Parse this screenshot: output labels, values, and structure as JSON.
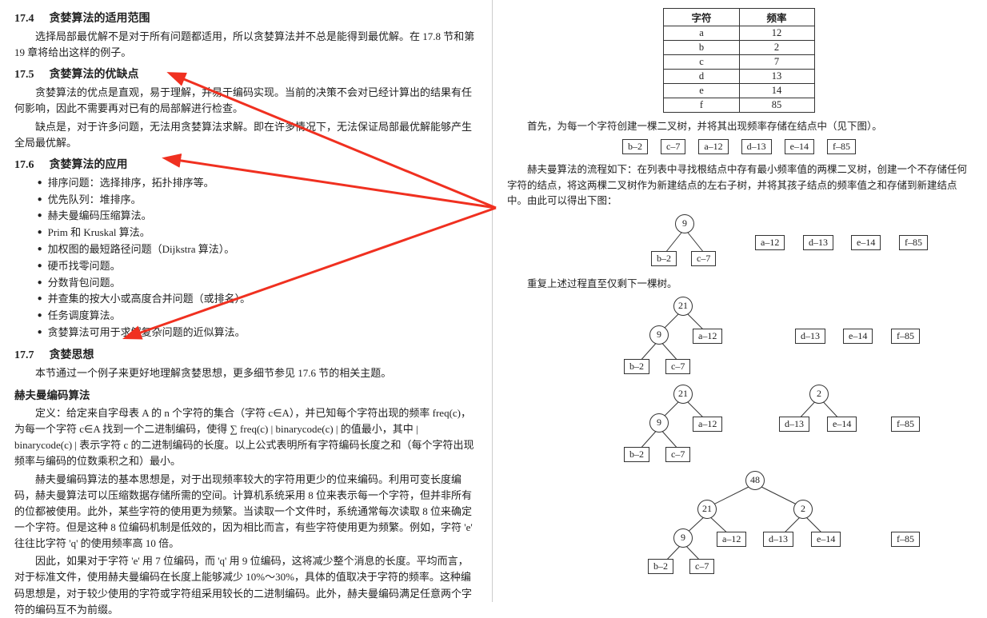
{
  "left": {
    "s174": {
      "num": "17.4",
      "title": "贪婪算法的适用范围",
      "p1": "选择局部最优解不是对于所有问题都适用，所以贪婪算法并不总是能得到最优解。在 17.8 节和第 19 章将给出这样的例子。"
    },
    "s175": {
      "num": "17.5",
      "title": "贪婪算法的优缺点",
      "p1": "贪婪算法的优点是直观，易于理解，并易于编码实现。当前的决策不会对已经计算出的结果有任何影响，因此不需要再对已有的局部解进行检查。",
      "p2": "缺点是，对于许多问题，无法用贪婪算法求解。即在许多情况下，无法保证局部最优解能够产生全局最优解。"
    },
    "s176": {
      "num": "17.6",
      "title": "贪婪算法的应用",
      "items": [
        "排序问题：选择排序，拓扑排序等。",
        "优先队列：堆排序。",
        "赫夫曼编码压缩算法。",
        "Prim 和 Kruskal 算法。",
        "加权图的最短路径问题（Dijkstra 算法）。",
        "硬币找零问题。",
        "分数背包问题。",
        "并查集的按大小或高度合并问题（或排名）。",
        "任务调度算法。",
        "贪婪算法可用于求解复杂问题的近似算法。"
      ]
    },
    "s177": {
      "num": "17.7",
      "title": "贪婪思想",
      "p1": "本节通过一个例子来更好地理解贪婪思想，更多细节参见 17.6 节的相关主题。"
    },
    "huff": {
      "title": "赫夫曼编码算法",
      "def": "定义：给定来自字母表 A 的 n 个字符的集合（字符 c∈A），并已知每个字符出现的频率 freq(c)，为每一个字符 c∈A 找到一个二进制编码，使得 ∑ freq(c) | binarycode(c) | 的值最小，其中 | binarycode(c) | 表示字符 c 的二进制编码的长度。以上公式表明所有字符编码长度之和（每个字符出现频率与编码的位数乘积之和）最小。",
      "p2": "赫夫曼编码算法的基本思想是，对于出现频率较大的字符用更少的位来编码。利用可变长度编码，赫夫曼算法可以压缩数据存储所需的空间。计算机系统采用 8 位来表示每一个字符，但并非所有的位都被使用。此外，某些字符的使用更为频繁。当读取一个文件时，系统通常每次读取 8 位来确定一个字符。但是这种 8 位编码机制是低效的，因为相比而言，有些字符使用更为频繁。例如，字符 'e' 往往比字符 'q' 的使用频率高 10 倍。",
      "p3": "因此，如果对于字符 'e' 用 7 位编码，而 'q' 用 9 位编码，这将减少整个消息的长度。平均而言，对于标准文件，使用赫夫曼编码在长度上能够减少 10%～30%，具体的值取决于字符的频率。这种编码思想是，对于较少使用的字符或字符组采用较长的二进制编码。此外，赫夫曼编码满足任意两个字符的编码互不为前缀。"
    }
  },
  "right": {
    "tbl": {
      "h1": "字符",
      "h2": "频率",
      "rows": [
        [
          "a",
          "12"
        ],
        [
          "b",
          "2"
        ],
        [
          "c",
          "7"
        ],
        [
          "d",
          "13"
        ],
        [
          "e",
          "14"
        ],
        [
          "f",
          "85"
        ]
      ]
    },
    "p1": "首先，为每一个字符创建一棵二叉树，并将其出现频率存储在结点中（见下图）。",
    "forest0": [
      "b–2",
      "c–7",
      "a–12",
      "d–13",
      "e–14",
      "f–85"
    ],
    "p2": "赫夫曼算法的流程如下：在列表中寻找根结点中存有最小频率值的两棵二叉树，创建一个不存储任何字符的结点，将这两棵二叉树作为新建结点的左右子树，并将其孩子结点的频率值之和存储到新建结点中。由此可以得出下图：",
    "p3": "重复上述过程直至仅剩下一棵树。",
    "labels": {
      "n9": "9",
      "n21": "21",
      "n2": "2",
      "n48": "48",
      "b2": "b–2",
      "c7": "c–7",
      "a12": "a–12",
      "d13": "d–13",
      "e14": "e–14",
      "f85": "f–85"
    }
  },
  "colors": {
    "arrow": "#f03020"
  }
}
